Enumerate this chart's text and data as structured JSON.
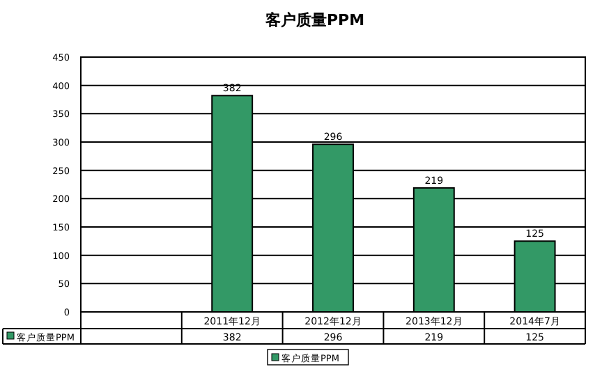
{
  "chart_data": {
    "type": "bar",
    "title": "客户质量PPM",
    "categories": [
      null,
      "2011年12月",
      "2012年12月",
      "2013年12月",
      "2014年7月"
    ],
    "series": [
      {
        "name": "客户质量PPM",
        "color": "#339966",
        "values": [
          null,
          382,
          296,
          219,
          125
        ],
        "value_labels": [
          null,
          "382",
          "296",
          "219",
          "125"
        ]
      }
    ],
    "ylim": [
      0,
      450
    ],
    "yticks": [
      0,
      50,
      100,
      150,
      200,
      250,
      300,
      350,
      400,
      450
    ],
    "annotations": [
      {
        "text": "382",
        "x": "2011年12月"
      },
      {
        "text": "296",
        "x": "2012年12月"
      },
      {
        "text": "219",
        "x": "2013年12月"
      },
      {
        "text": "125",
        "x": "2014年7月"
      }
    ],
    "grid": "y",
    "data_labels": true,
    "legend": "bottom"
  }
}
